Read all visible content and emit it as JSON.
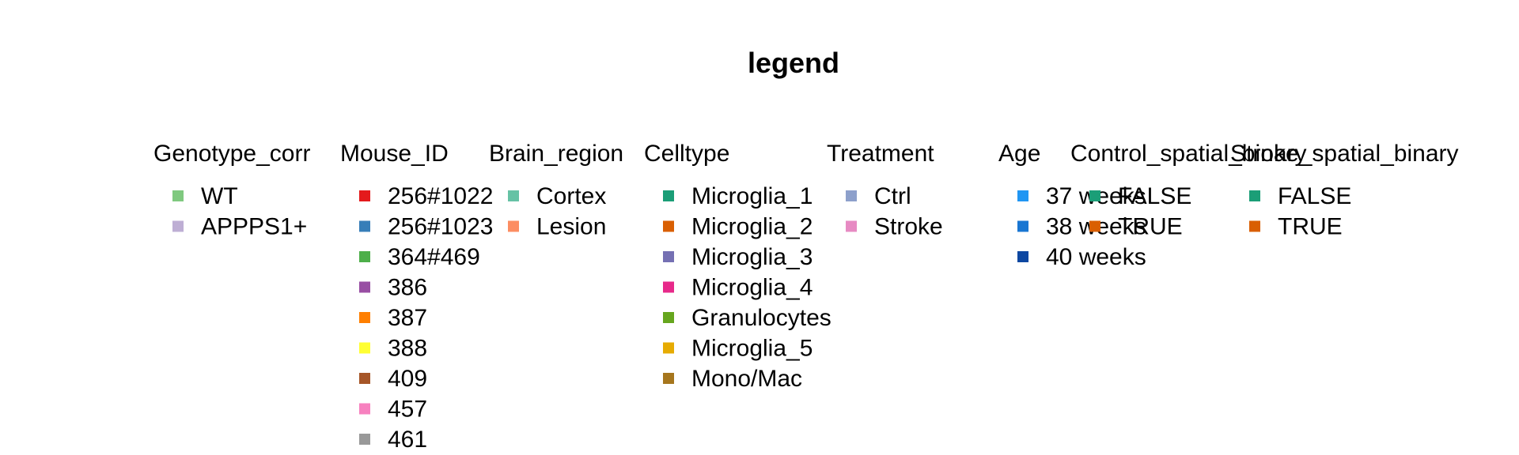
{
  "chart_data": {
    "type": "legend",
    "title": "legend",
    "groups": [
      {
        "name": "Genotype_corr",
        "entries": [
          {
            "label": "WT",
            "color": "#7FC97F"
          },
          {
            "label": "APPPS1+",
            "color": "#BEAED4"
          }
        ]
      },
      {
        "name": "Mouse_ID",
        "entries": [
          {
            "label": "256#1022",
            "color": "#E41A1C"
          },
          {
            "label": "256#1023",
            "color": "#377EB8"
          },
          {
            "label": "364#469",
            "color": "#4DAF4A"
          },
          {
            "label": "386",
            "color": "#984EA3"
          },
          {
            "label": "387",
            "color": "#FF7F00"
          },
          {
            "label": "388",
            "color": "#FFFF33"
          },
          {
            "label": "409",
            "color": "#A65628"
          },
          {
            "label": "457",
            "color": "#F781BF"
          },
          {
            "label": "461",
            "color": "#999999"
          }
        ]
      },
      {
        "name": "Brain_region",
        "entries": [
          {
            "label": "Cortex",
            "color": "#66C2A5"
          },
          {
            "label": "Lesion",
            "color": "#FC8D62"
          }
        ]
      },
      {
        "name": "Celltype",
        "entries": [
          {
            "label": "Microglia_1",
            "color": "#1B9E77"
          },
          {
            "label": "Microglia_2",
            "color": "#D95F02"
          },
          {
            "label": "Microglia_3",
            "color": "#7570B3"
          },
          {
            "label": "Microglia_4",
            "color": "#E7298A"
          },
          {
            "label": "Granulocytes",
            "color": "#66A61E"
          },
          {
            "label": "Microglia_5",
            "color": "#E6AB02"
          },
          {
            "label": "Mono/Mac",
            "color": "#A6761D"
          }
        ]
      },
      {
        "name": "Treatment",
        "entries": [
          {
            "label": "Ctrl",
            "color": "#8DA0CB"
          },
          {
            "label": "Stroke",
            "color": "#E78AC3"
          }
        ]
      },
      {
        "name": "Age",
        "entries": [
          {
            "label": "37 weeks",
            "color": "#2196F3"
          },
          {
            "label": "38 weeks",
            "color": "#1976D2"
          },
          {
            "label": "40 weeks",
            "color": "#0D47A1"
          }
        ]
      },
      {
        "name": "Control_spatial_binary",
        "entries": [
          {
            "label": "FALSE",
            "color": "#1B9E77"
          },
          {
            "label": "TRUE",
            "color": "#D95F02"
          }
        ]
      },
      {
        "name": "Stroke_spatial_binary",
        "entries": [
          {
            "label": "FALSE",
            "color": "#1B9E77"
          },
          {
            "label": "TRUE",
            "color": "#D95F02"
          }
        ]
      }
    ]
  }
}
